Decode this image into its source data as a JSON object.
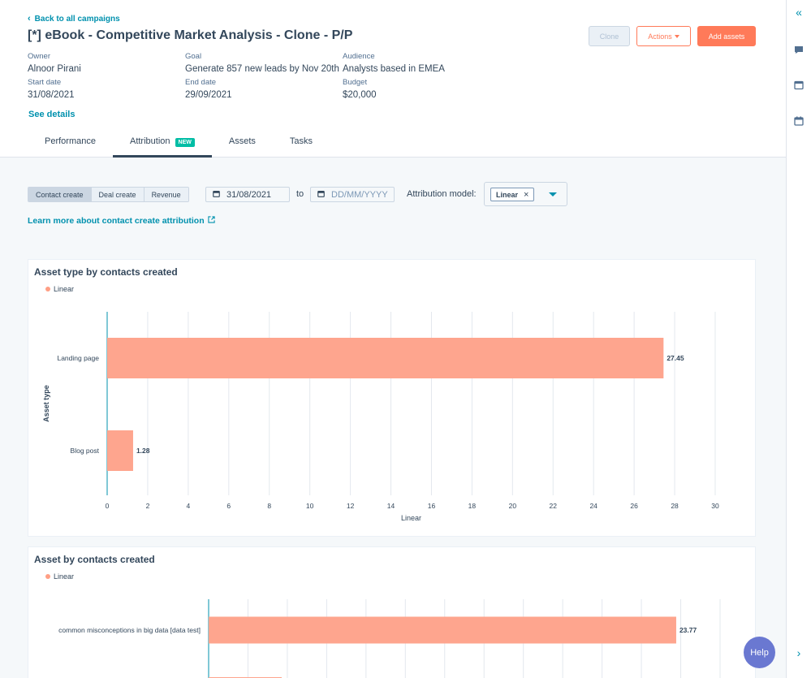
{
  "header": {
    "back_link": "Back to all campaigns",
    "title": "[*] eBook - Competitive Market Analysis - Clone - P/P",
    "clone_label": "Clone",
    "actions_label": "Actions",
    "add_assets_label": "Add assets",
    "owner_label": "Owner",
    "owner": "Alnoor Pirani",
    "goal_label": "Goal",
    "goal": "Generate 857 new leads by Nov 20th",
    "audience_label": "Audience",
    "audience": "Analysts based in EMEA",
    "start_label": "Start date",
    "start": "31/08/2021",
    "end_label": "End date",
    "end": "29/09/2021",
    "budget_label": "Budget",
    "budget": "$20,000",
    "see_details": "See details",
    "tabs": [
      {
        "label": "Performance"
      },
      {
        "label": "Attribution",
        "badge": "NEW"
      },
      {
        "label": "Assets"
      },
      {
        "label": "Tasks"
      }
    ]
  },
  "controls": {
    "segments": [
      "Contact create",
      "Deal create",
      "Revenue"
    ],
    "date_from": "31/08/2021",
    "to_label": "to",
    "date_to_placeholder": "DD/MM/YYYY",
    "model_label": "Attribution model:",
    "model_value": "Linear",
    "learn_more": "Learn more about contact create attribution"
  },
  "accent_color": "#ff7a59",
  "bar_color": "#fea58e",
  "link_color": "#0091ae",
  "help_label": "Help",
  "chart_data": [
    {
      "type": "bar",
      "orientation": "horizontal",
      "title": "Asset type by contacts created",
      "legend": "Linear",
      "categories": [
        "Landing page",
        "Blog post"
      ],
      "values": [
        27.45,
        1.28
      ],
      "value_labels": [
        "27.45",
        "1.28"
      ],
      "xlabel": "Linear",
      "ylabel": "Asset type",
      "xlim": [
        0,
        30
      ],
      "xticks": [
        "0",
        "2",
        "4",
        "6",
        "8",
        "10",
        "12",
        "14",
        "16",
        "18",
        "20",
        "22",
        "24",
        "26",
        "28",
        "30"
      ],
      "grid": true
    },
    {
      "type": "bar",
      "orientation": "horizontal",
      "title": "Asset by contacts created",
      "legend": "Linear",
      "categories": [
        "common misconceptions in big data [data test]"
      ],
      "values": [
        23.77
      ],
      "value_labels": [
        "23.77"
      ],
      "xlim": [
        0,
        26
      ],
      "grid": true
    }
  ]
}
